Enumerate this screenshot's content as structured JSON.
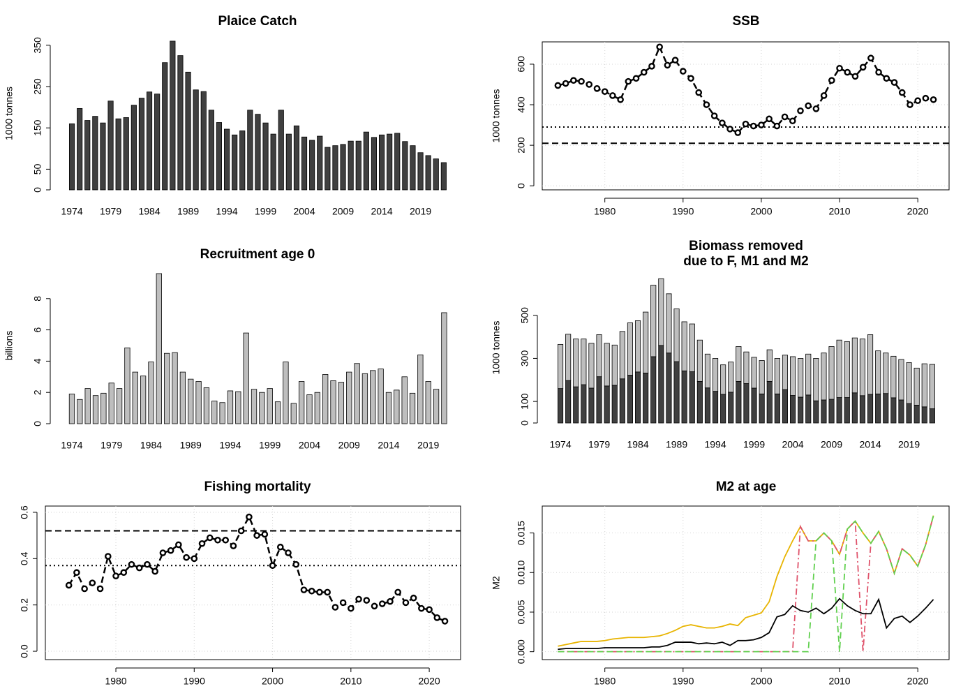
{
  "chart_data": [
    {
      "type": "bar",
      "title": "Plaice Catch",
      "ylabel": "1000 tonnes",
      "categories": [
        "1974",
        null,
        null,
        null,
        null,
        "1979",
        null,
        null,
        null,
        null,
        "1984",
        null,
        null,
        null,
        null,
        "1989",
        null,
        null,
        null,
        null,
        "1994",
        null,
        null,
        null,
        null,
        "1999",
        null,
        null,
        null,
        null,
        "2004",
        null,
        null,
        null,
        null,
        "2009",
        null,
        null,
        null,
        null,
        "2014",
        null,
        null,
        null,
        null,
        "2019",
        null,
        null,
        null
      ],
      "series": [
        {
          "color": "#404040",
          "values": [
            160,
            197,
            168,
            178,
            162,
            215,
            172,
            175,
            205,
            222,
            237,
            232,
            308,
            360,
            325,
            285,
            242,
            238,
            193,
            163,
            147,
            133,
            143,
            193,
            183,
            162,
            135,
            193,
            135,
            155,
            128,
            120,
            130,
            103,
            107,
            110,
            118,
            118,
            140,
            127,
            133,
            135,
            137,
            117,
            107,
            90,
            83,
            75,
            66
          ]
        }
      ],
      "ylim": [
        0,
        370
      ],
      "yticks": [
        0,
        50,
        150,
        250,
        350
      ],
      "grid": false,
      "box": false
    },
    {
      "type": "line",
      "title": "SSB",
      "ylabel": "1000 tonnes",
      "x": [
        1974,
        1975,
        1976,
        1977,
        1978,
        1979,
        1980,
        1981,
        1982,
        1983,
        1984,
        1985,
        1986,
        1987,
        1988,
        1989,
        1990,
        1991,
        1992,
        1993,
        1994,
        1995,
        1996,
        1997,
        1998,
        1999,
        2000,
        2001,
        2002,
        2003,
        2004,
        2005,
        2006,
        2007,
        2008,
        2009,
        2010,
        2011,
        2012,
        2013,
        2014,
        2015,
        2016,
        2017,
        2018,
        2019,
        2020,
        2021,
        2022
      ],
      "series": [
        {
          "color": "#000000",
          "linestyle": "dashed",
          "marker": "circle",
          "values": [
            495,
            505,
            520,
            515,
            500,
            480,
            465,
            445,
            425,
            515,
            530,
            560,
            590,
            685,
            595,
            620,
            565,
            530,
            460,
            400,
            345,
            310,
            280,
            262,
            305,
            295,
            300,
            330,
            295,
            340,
            320,
            370,
            395,
            380,
            445,
            520,
            580,
            560,
            540,
            585,
            630,
            560,
            530,
            510,
            460,
            400,
            420,
            432,
            425
          ]
        }
      ],
      "ref_lines": [
        {
          "value": 290,
          "linestyle": "dotted"
        },
        {
          "value": 210,
          "linestyle": "dashed"
        }
      ],
      "xlim": [
        1972,
        2024
      ],
      "xticks": [
        1980,
        1990,
        2000,
        2010,
        2020
      ],
      "ylim": [
        -20,
        710
      ],
      "yticks": [
        0,
        200,
        400,
        600
      ],
      "grid": true,
      "box": true
    },
    {
      "type": "bar",
      "title": "Recruitment age 0",
      "ylabel": "billions",
      "categories": [
        "1974",
        null,
        null,
        null,
        null,
        "1979",
        null,
        null,
        null,
        null,
        "1984",
        null,
        null,
        null,
        null,
        "1989",
        null,
        null,
        null,
        null,
        "1994",
        null,
        null,
        null,
        null,
        "1999",
        null,
        null,
        null,
        null,
        "2004",
        null,
        null,
        null,
        null,
        "2009",
        null,
        null,
        null,
        null,
        "2014",
        null,
        null,
        null,
        null,
        "2019",
        null,
        null
      ],
      "series": [
        {
          "color": "#bebebe",
          "values": [
            1.9,
            1.55,
            2.25,
            1.8,
            1.95,
            2.6,
            2.25,
            4.85,
            3.3,
            3.05,
            3.95,
            9.6,
            4.5,
            4.55,
            3.3,
            2.85,
            2.7,
            2.3,
            1.45,
            1.35,
            2.1,
            2.05,
            5.8,
            2.2,
            2.0,
            2.25,
            1.4,
            3.95,
            1.3,
            2.7,
            1.85,
            2.0,
            3.15,
            2.75,
            2.65,
            3.3,
            3.85,
            3.2,
            3.4,
            3.5,
            2.0,
            2.15,
            3.0,
            1.95,
            4.4,
            2.7,
            2.2,
            7.1
          ]
        }
      ],
      "ylim": [
        0,
        10
      ],
      "yticks": [
        0,
        2,
        4,
        6,
        8
      ],
      "grid": false,
      "box": false
    },
    {
      "type": "bar",
      "title": [
        "Biomass removed",
        "due to F, M1 and M2"
      ],
      "ylabel": "1000 tonnes",
      "categories": [
        "1974",
        null,
        null,
        null,
        null,
        "1979",
        null,
        null,
        null,
        null,
        "1984",
        null,
        null,
        null,
        null,
        "1989",
        null,
        null,
        null,
        null,
        "1994",
        null,
        null,
        null,
        null,
        "1999",
        null,
        null,
        null,
        null,
        "2004",
        null,
        null,
        null,
        null,
        "2009",
        null,
        null,
        null,
        null,
        "2014",
        null,
        null,
        null,
        null,
        "2019",
        null,
        null,
        null
      ],
      "series": [
        {
          "color": "#404040",
          "values": [
            160,
            197,
            168,
            178,
            162,
            215,
            172,
            175,
            205,
            222,
            237,
            232,
            308,
            360,
            325,
            285,
            242,
            238,
            193,
            163,
            147,
            133,
            143,
            193,
            183,
            162,
            135,
            193,
            135,
            155,
            128,
            120,
            130,
            103,
            107,
            110,
            118,
            118,
            140,
            127,
            133,
            135,
            137,
            117,
            107,
            90,
            83,
            75,
            66
          ]
        },
        {
          "color": "#bebebe",
          "values": [
            205,
            215,
            222,
            212,
            208,
            195,
            198,
            187,
            220,
            243,
            238,
            283,
            332,
            310,
            275,
            245,
            228,
            222,
            192,
            157,
            153,
            137,
            140,
            162,
            147,
            143,
            155,
            147,
            165,
            160,
            180,
            180,
            190,
            197,
            218,
            245,
            267,
            260,
            255,
            263,
            277,
            200,
            188,
            193,
            188,
            190,
            172,
            200,
            206
          ]
        }
      ],
      "ylim": [
        0,
        700
      ],
      "yticks": [
        0,
        100,
        300,
        500
      ],
      "grid": false,
      "box": false
    },
    {
      "type": "line",
      "title": "Fishing mortality",
      "x": [
        1974,
        1975,
        1976,
        1977,
        1978,
        1979,
        1980,
        1981,
        1982,
        1983,
        1984,
        1985,
        1986,
        1987,
        1988,
        1989,
        1990,
        1991,
        1992,
        1993,
        1994,
        1995,
        1996,
        1997,
        1998,
        1999,
        2000,
        2001,
        2002,
        2003,
        2004,
        2005,
        2006,
        2007,
        2008,
        2009,
        2010,
        2011,
        2012,
        2013,
        2014,
        2015,
        2016,
        2017,
        2018,
        2019,
        2020,
        2021,
        2022
      ],
      "series": [
        {
          "color": "#000000",
          "linestyle": "dashed",
          "marker": "circle",
          "values": [
            0.285,
            0.34,
            0.27,
            0.295,
            0.27,
            0.41,
            0.325,
            0.34,
            0.375,
            0.36,
            0.375,
            0.345,
            0.425,
            0.435,
            0.46,
            0.405,
            0.4,
            0.465,
            0.49,
            0.48,
            0.48,
            0.455,
            0.52,
            0.58,
            0.5,
            0.505,
            0.37,
            0.45,
            0.425,
            0.375,
            0.265,
            0.26,
            0.255,
            0.255,
            0.19,
            0.21,
            0.185,
            0.225,
            0.22,
            0.195,
            0.205,
            0.215,
            0.255,
            0.21,
            0.23,
            0.185,
            0.18,
            0.145,
            0.13
          ]
        }
      ],
      "ref_lines": [
        {
          "value": 0.52,
          "linestyle": "dashed"
        },
        {
          "value": 0.37,
          "linestyle": "dotted"
        }
      ],
      "xlim": [
        1971,
        2024
      ],
      "xticks": [
        1980,
        1990,
        2000,
        2010,
        2020
      ],
      "ylim": [
        -0.036,
        0.627
      ],
      "yticks": [
        {
          "value": 0,
          "label": "0.0"
        },
        0.2,
        0.4,
        0.6
      ],
      "grid": true,
      "box": true
    },
    {
      "type": "line",
      "title": "M2 at age",
      "ylabel": "M2",
      "x": [
        1974,
        1975,
        1976,
        1977,
        1978,
        1979,
        1980,
        1981,
        1982,
        1983,
        1984,
        1985,
        1986,
        1987,
        1988,
        1989,
        1990,
        1991,
        1992,
        1993,
        1994,
        1995,
        1996,
        1997,
        1998,
        1999,
        2000,
        2001,
        2002,
        2003,
        2004,
        2005,
        2006,
        2007,
        2008,
        2009,
        2010,
        2011,
        2012,
        2013,
        2014,
        2015,
        2016,
        2017,
        2018,
        2019,
        2020,
        2021,
        2022
      ],
      "series": [
        {
          "color": "#e8b400",
          "linestyle": "solid",
          "values": [
            0.0007,
            0.0009,
            0.0011,
            0.0013,
            0.0013,
            0.0013,
            0.0014,
            0.0016,
            0.0017,
            0.0018,
            0.0018,
            0.0018,
            0.0019,
            0.002,
            0.0023,
            0.0027,
            0.0032,
            0.0034,
            0.0032,
            0.003,
            0.003,
            0.0032,
            0.0035,
            0.0033,
            0.0043,
            0.0046,
            0.0049,
            0.0063,
            0.0095,
            0.012,
            0.014,
            0.0158,
            0.014,
            0.014,
            0.015,
            0.014,
            0.0123,
            0.0155,
            0.0165,
            0.015,
            0.0137,
            0.0152,
            0.013,
            0.0099,
            0.013,
            0.0122,
            0.0108,
            0.0135,
            0.0172
          ]
        },
        {
          "color": "#df536b",
          "linestyle": "dashdot",
          "values": [
            0,
            0,
            0,
            0,
            0,
            0,
            0,
            0,
            0,
            0,
            0,
            0,
            0,
            0,
            0,
            0,
            0,
            0,
            0,
            0,
            0,
            0,
            0,
            0,
            0,
            0,
            0,
            0,
            0,
            0,
            0,
            0.0158,
            0.014,
            0.014,
            0.015,
            0.014,
            0.0123,
            0.0155,
            0.0165,
            0,
            0.0137,
            0.0152,
            0.013,
            0.0099,
            0.013,
            0.0122,
            0.0108,
            0.0135,
            0.0172
          ]
        },
        {
          "color": "#61d04f",
          "linestyle": "dashed",
          "values": [
            0,
            0,
            0,
            0,
            0,
            0,
            0,
            0,
            0,
            0,
            0,
            0,
            0,
            0,
            0,
            0,
            0,
            0,
            0,
            0,
            0,
            0,
            0,
            0,
            0,
            0,
            0,
            0,
            0,
            0,
            0,
            0,
            0,
            0.014,
            0.015,
            0.014,
            0,
            0.0155,
            0.0165,
            0.015,
            0.0137,
            0.0152,
            0.013,
            0.0099,
            0.013,
            0.0122,
            0.0108,
            0.0135,
            0.0172
          ]
        },
        {
          "color": "#000000",
          "linestyle": "solid",
          "values": [
            0.0003,
            0.0004,
            0.0004,
            0.0004,
            0.0004,
            0.0004,
            0.0005,
            0.0005,
            0.0005,
            0.0005,
            0.0005,
            0.0005,
            0.0006,
            0.0006,
            0.0008,
            0.0012,
            0.0012,
            0.0012,
            0.001,
            0.0011,
            0.001,
            0.0012,
            0.0008,
            0.0014,
            0.0014,
            0.0015,
            0.0018,
            0.0024,
            0.0044,
            0.0047,
            0.0058,
            0.0052,
            0.005,
            0.0055,
            0.0048,
            0.0055,
            0.0067,
            0.0058,
            0.0052,
            0.0048,
            0.0048,
            0.0066,
            0.003,
            0.0042,
            0.0045,
            0.0037,
            0.0045,
            0.0055,
            0.0066
          ]
        }
      ],
      "xlim": [
        1972,
        2024
      ],
      "xticks": [
        1980,
        1990,
        2000,
        2010,
        2020
      ],
      "ylim": [
        -0.001,
        0.0184
      ],
      "yticks": [
        {
          "value": 0,
          "label": "0.000"
        },
        0.005,
        {
          "value": 0.01,
          "label": "0.010"
        },
        0.015
      ],
      "grid": true,
      "box": true
    }
  ]
}
